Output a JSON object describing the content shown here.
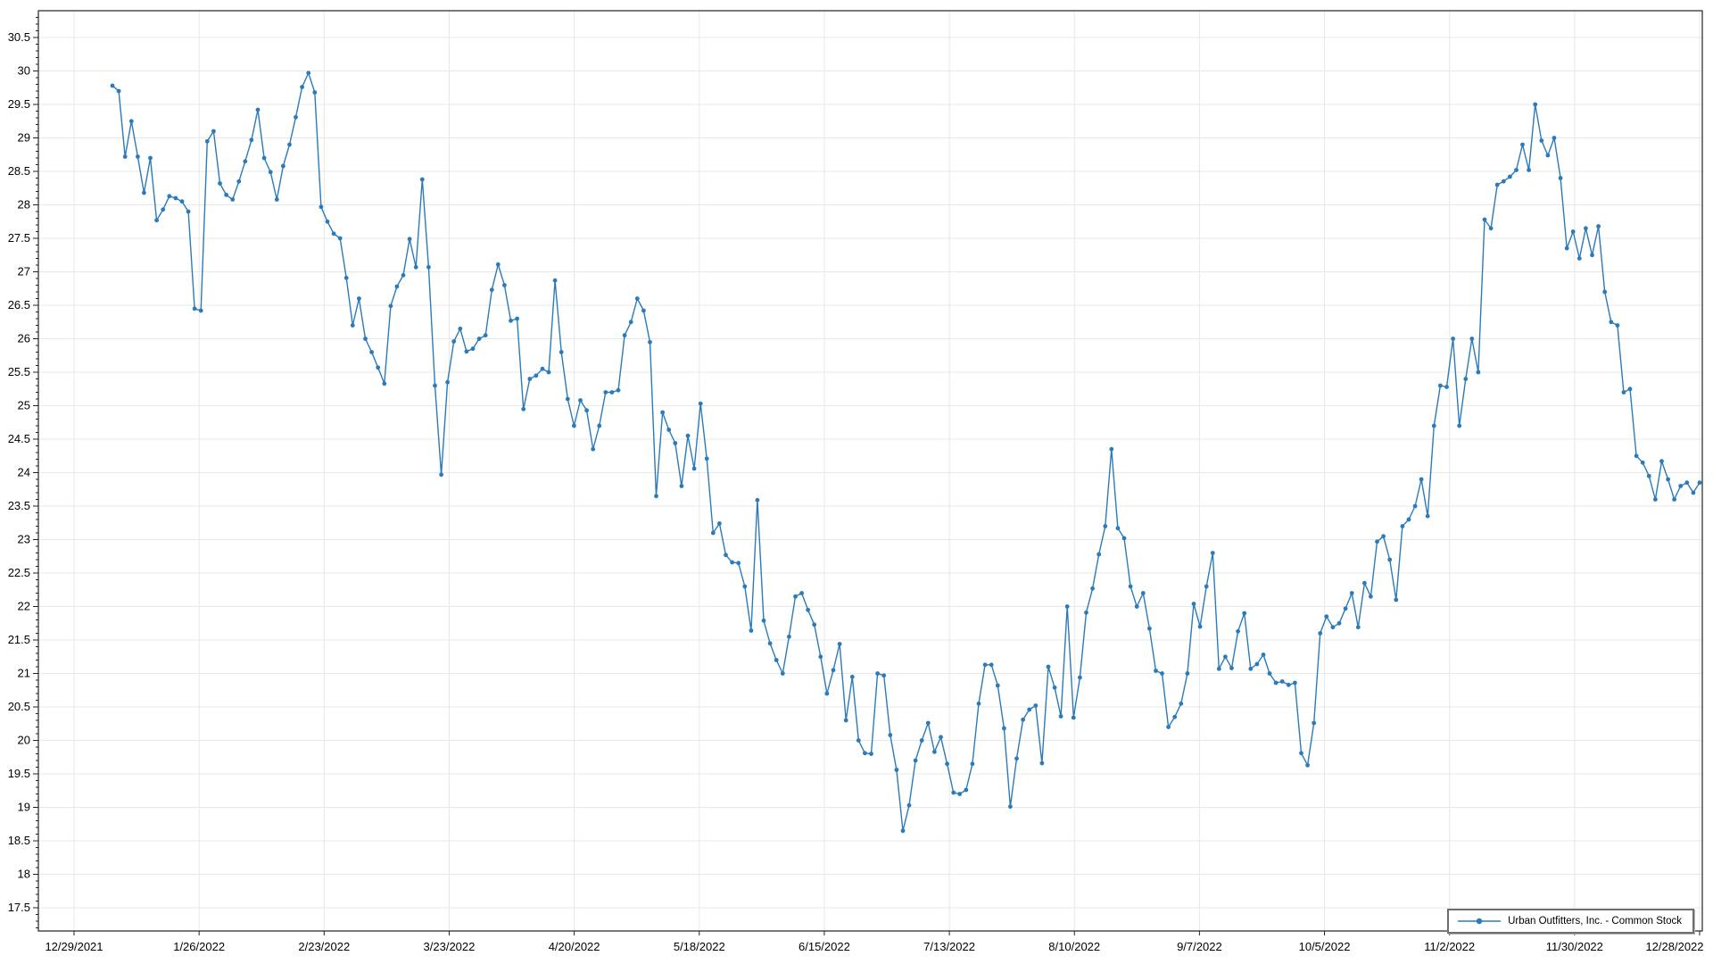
{
  "legend": {
    "label": "Urban Outfitters, Inc. - Common Stock"
  },
  "colors": {
    "line": "#2b7bba",
    "marker": "#2b7bba",
    "grid": "#e8e8e8",
    "axis": "#222222",
    "text": "#000000",
    "legend_border": "#6e6e6e",
    "background": "#ffffff"
  },
  "chart_data": {
    "type": "line",
    "title": "",
    "xlabel": "",
    "ylabel": "",
    "grid": true,
    "legend_position": "bottom-right-inside",
    "ylim": [
      17.15,
      30.9
    ],
    "y_tick_step": 0.5,
    "y_minor_tick_step": 0.1,
    "y_tick_labels": [
      "30.5",
      "30",
      "29.5",
      "29",
      "28.5",
      "28",
      "27.5",
      "27",
      "26.5",
      "26",
      "25.5",
      "25",
      "24.5",
      "24",
      "23.5",
      "23",
      "22.5",
      "22",
      "21.5",
      "21",
      "20.5",
      "20",
      "19.5",
      "19",
      "18.5",
      "18",
      "17.5"
    ],
    "x_tick_labels": [
      "12/29/2021",
      "1/26/2022",
      "2/23/2022",
      "3/23/2022",
      "4/20/2022",
      "5/18/2022",
      "6/15/2022",
      "7/13/2022",
      "8/10/2022",
      "9/7/2022",
      "10/5/2022",
      "11/2/2022",
      "11/30/2022",
      "12/28/2022"
    ],
    "series": [
      {
        "name": "Urban Outfitters, Inc. - Common Stock",
        "marker": "circle",
        "values": [
          29.78,
          29.7,
          28.72,
          29.25,
          28.72,
          28.18,
          28.7,
          27.77,
          27.93,
          28.13,
          28.1,
          28.05,
          27.9,
          26.45,
          26.42,
          28.95,
          29.1,
          28.32,
          28.15,
          28.08,
          28.35,
          28.65,
          28.97,
          29.42,
          28.7,
          28.49,
          28.08,
          28.58,
          28.9,
          29.31,
          29.76,
          29.97,
          29.68,
          27.97,
          27.75,
          27.57,
          27.5,
          26.91,
          26.2,
          26.6,
          26.0,
          25.8,
          25.57,
          25.33,
          26.49,
          26.78,
          26.95,
          27.49,
          27.07,
          28.38,
          27.07,
          25.3,
          23.97,
          25.35,
          25.96,
          26.15,
          25.81,
          25.85,
          26.0,
          26.05,
          26.73,
          27.11,
          26.8,
          26.27,
          26.3,
          24.95,
          25.4,
          25.45,
          25.55,
          25.5,
          26.87,
          25.8,
          25.1,
          24.7,
          25.08,
          24.93,
          24.35,
          24.7,
          25.2,
          25.2,
          25.23,
          26.05,
          26.25,
          26.6,
          26.42,
          25.95,
          23.65,
          24.9,
          24.64,
          24.44,
          23.8,
          24.55,
          24.06,
          25.03,
          24.21,
          23.1,
          23.24,
          22.77,
          22.66,
          22.65,
          22.3,
          21.64,
          23.59,
          21.79,
          21.45,
          21.2,
          21.0,
          21.55,
          22.15,
          22.2,
          21.95,
          21.73,
          21.25,
          20.7,
          21.05,
          21.44,
          20.3,
          20.95,
          20.0,
          19.81,
          19.8,
          21.0,
          20.97,
          20.08,
          19.56,
          18.65,
          19.03,
          19.7,
          20.0,
          20.26,
          19.83,
          20.05,
          19.65,
          19.22,
          19.2,
          19.26,
          19.65,
          20.55,
          21.13,
          21.13,
          20.82,
          20.18,
          19.01,
          19.73,
          20.31,
          20.46,
          20.52,
          19.66,
          21.1,
          20.79,
          20.36,
          22.0,
          20.34,
          20.94,
          21.91,
          22.27,
          22.78,
          23.2,
          24.35,
          23.17,
          23.02,
          22.3,
          22.0,
          22.2,
          21.67,
          21.04,
          21.0,
          20.2,
          20.35,
          20.55,
          21.0,
          22.04,
          21.7,
          22.3,
          22.8,
          21.07,
          21.25,
          21.08,
          21.63,
          21.9,
          21.07,
          21.14,
          21.28,
          21.0,
          20.86,
          20.88,
          20.83,
          20.86,
          19.81,
          19.63,
          20.26,
          21.6,
          21.85,
          21.69,
          21.75,
          21.97,
          22.2,
          21.69,
          22.35,
          22.15,
          22.97,
          23.05,
          22.7,
          22.1,
          23.2,
          23.3,
          23.5,
          23.9,
          23.35,
          24.7,
          25.3,
          25.28,
          26.0,
          24.7,
          25.4,
          26.0,
          25.5,
          27.78,
          27.65,
          28.3,
          28.35,
          28.42,
          28.52,
          28.9,
          28.52,
          29.5,
          28.96,
          28.74,
          29.0,
          28.4,
          27.35,
          27.6,
          27.2,
          27.65,
          27.25,
          27.68,
          26.7,
          26.25,
          26.2,
          25.2,
          25.25,
          24.25,
          24.15,
          23.95,
          23.6,
          24.17,
          23.9,
          23.6,
          23.8,
          23.85,
          23.7,
          23.85
        ]
      }
    ]
  }
}
